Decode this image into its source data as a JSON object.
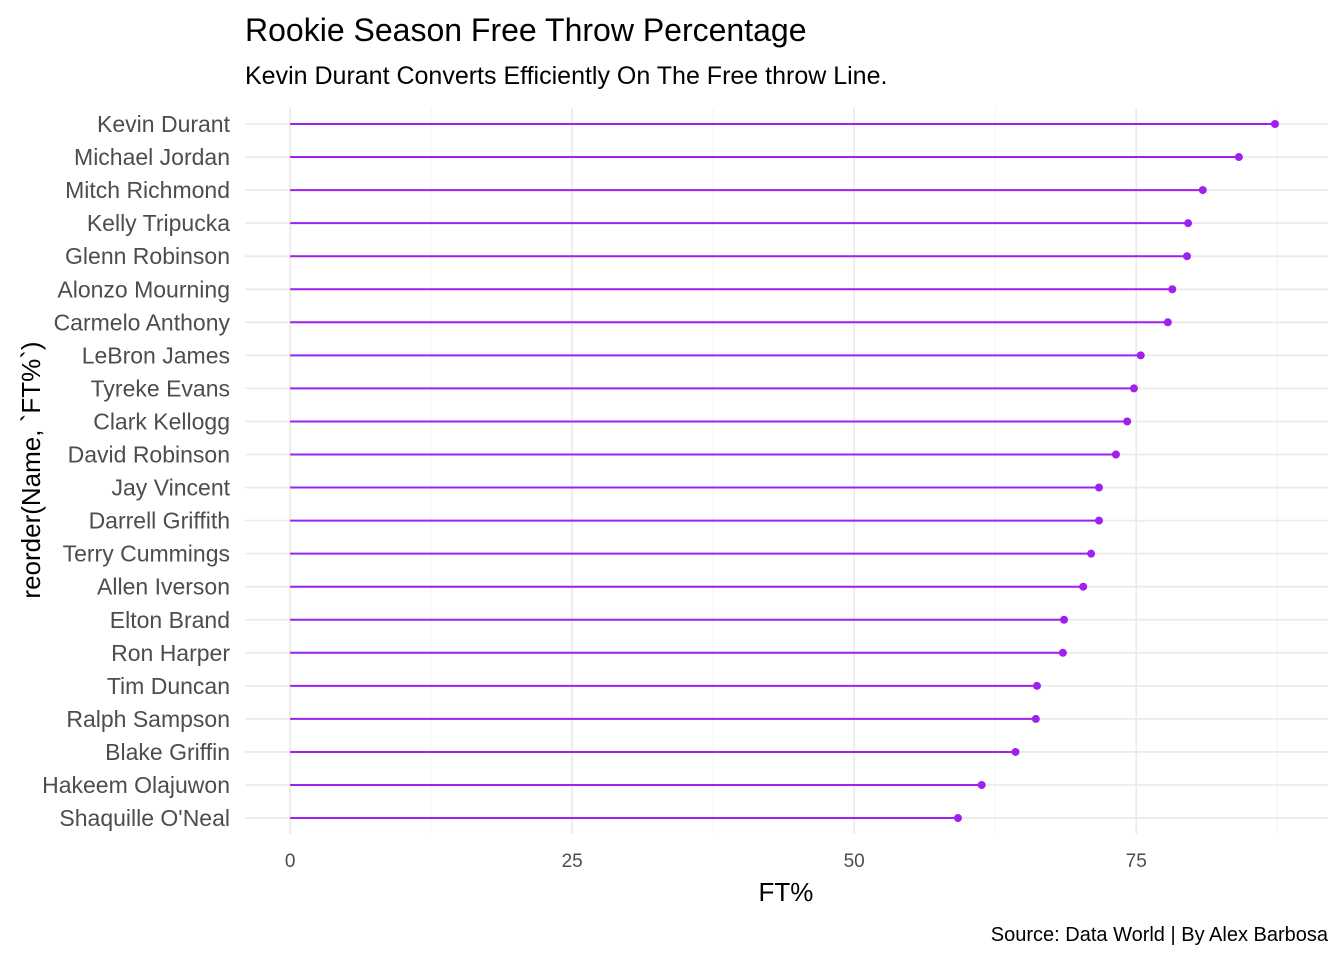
{
  "chart_data": {
    "type": "lollipop",
    "title": "Rookie Season Free Throw Percentage",
    "subtitle": "Kevin Durant Converts Efficiently On The Free throw Line.",
    "xlabel": "FT%",
    "ylabel": "reorder(Name, `FT%`)",
    "caption": "Source: Data World | By Alex Barbosa",
    "xlim": [
      -4,
      92
    ],
    "x_ticks": [
      0,
      25,
      50,
      75
    ],
    "x_tick_labels": [
      "0",
      "25",
      "50",
      "75"
    ],
    "x_minor_ticks": [
      12.5,
      37.5,
      62.5,
      87.5
    ],
    "grid": true,
    "legend": "none",
    "color": "#a020f0",
    "categories": [
      "Kevin Durant",
      "Michael Jordan",
      "Mitch Richmond",
      "Kelly Tripucka",
      "Glenn Robinson",
      "Alonzo Mourning",
      "Carmelo Anthony",
      "LeBron James",
      "Tyreke Evans",
      "Clark Kellogg",
      "David Robinson",
      "Jay Vincent",
      "Darrell Griffith",
      "Terry Cummings",
      "Allen Iverson",
      "Elton Brand",
      "Ron Harper",
      "Tim Duncan",
      "Ralph Sampson",
      "Blake Griffin",
      "Hakeem Olajuwon",
      "Shaquille O'Neal"
    ],
    "values": [
      87.3,
      84.1,
      80.9,
      79.6,
      79.5,
      78.2,
      77.8,
      75.4,
      74.8,
      74.2,
      73.2,
      71.7,
      71.7,
      71.0,
      70.3,
      68.6,
      68.5,
      66.2,
      66.1,
      64.3,
      61.3,
      59.2
    ]
  }
}
